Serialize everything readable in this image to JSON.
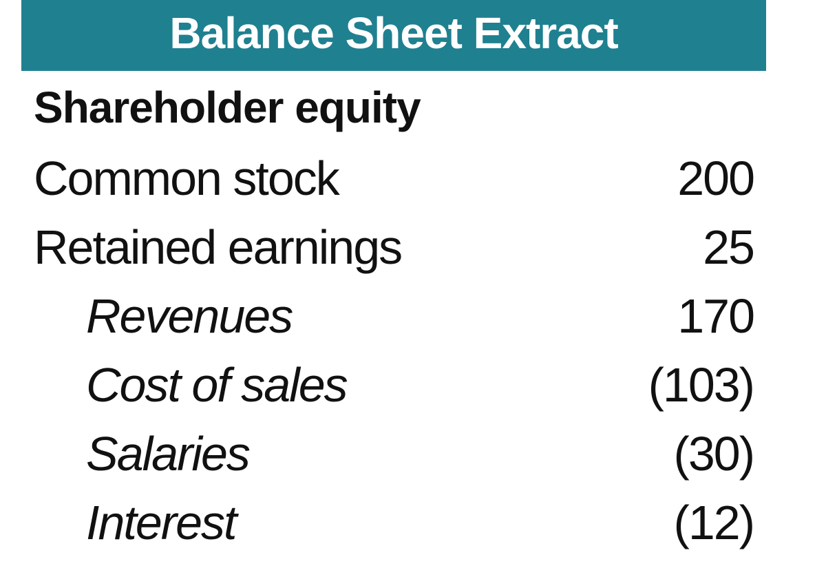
{
  "header": {
    "title": "Balance Sheet Extract"
  },
  "section": {
    "title": "Shareholder equity"
  },
  "rows": [
    {
      "label": "Common stock",
      "value": "200"
    },
    {
      "label": "Retained earnings",
      "value": "25"
    },
    {
      "label": "Revenues",
      "value": "170"
    },
    {
      "label": "Cost of sales",
      "value": "(103)"
    },
    {
      "label": "Salaries",
      "value": "(30)"
    },
    {
      "label": "Interest",
      "value": "(12)"
    }
  ],
  "colors": {
    "header_background": "#1f8090",
    "header_text": "#ffffff",
    "body_text": "#111111"
  }
}
